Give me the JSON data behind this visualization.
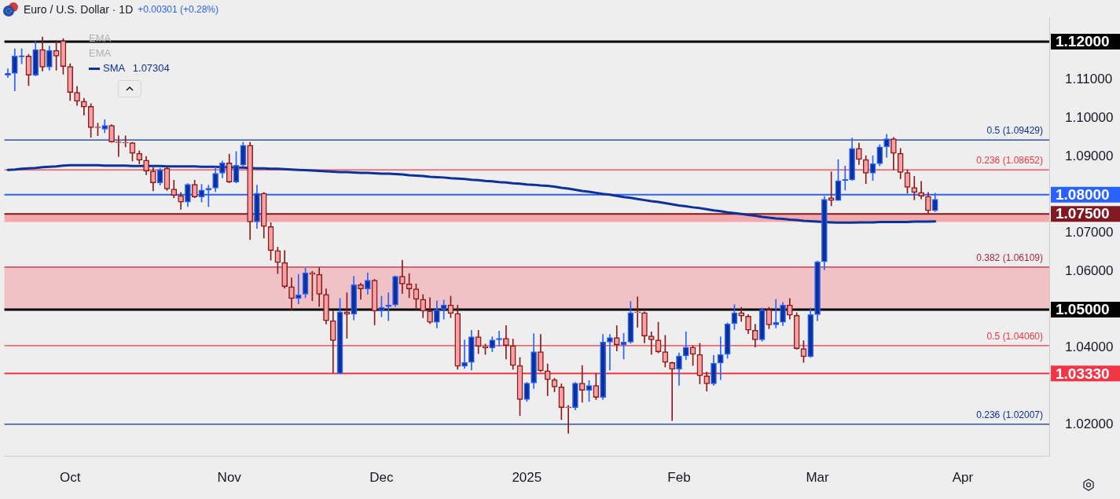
{
  "chart_data": {
    "type": "candlestick",
    "title": "Euro / U.S. Dollar · 1D",
    "subtitle": "+0.00301 (+0.28%)",
    "categories": [
      null,
      null,
      null,
      null,
      null,
      null,
      null,
      null,
      null,
      "Oct",
      null,
      null,
      null,
      null,
      null,
      null,
      null,
      null,
      null,
      null,
      null,
      null,
      null,
      null,
      null,
      null,
      null,
      null,
      null,
      null,
      null,
      null,
      "Nov",
      null,
      null,
      null,
      null,
      null,
      null,
      null,
      null,
      null,
      null,
      null,
      null,
      null,
      null,
      null,
      null,
      null,
      null,
      null,
      null,
      null,
      "Dec",
      null,
      null,
      null,
      null,
      null,
      null,
      null,
      null,
      null,
      null,
      null,
      null,
      null,
      null,
      null,
      null,
      null,
      null,
      null,
      null,
      "2025",
      null,
      null,
      null,
      null,
      null,
      null,
      null,
      null,
      null,
      null,
      null,
      null,
      null,
      null,
      null,
      null,
      null,
      null,
      null,
      null,
      null,
      "Feb",
      null,
      null,
      null,
      null,
      null,
      null,
      null,
      null,
      null,
      null,
      null,
      null,
      null,
      null,
      null,
      null,
      null,
      null,
      null,
      "Mar",
      null,
      null,
      null,
      null,
      null,
      null,
      null,
      null,
      null,
      null,
      null,
      null,
      null,
      null,
      null,
      null,
      null,
      null,
      null,
      null,
      "Apr",
      null,
      null,
      null,
      null,
      null,
      null,
      null,
      null,
      null,
      null,
      null,
      null
    ],
    "ohlc": [
      [
        1.1112,
        1.1129,
        1.1106,
        1.1117
      ],
      [
        1.1117,
        1.1181,
        1.1071,
        1.1162
      ],
      [
        1.116,
        1.1181,
        1.1142,
        1.1163
      ],
      [
        1.1162,
        1.1167,
        1.1085,
        1.1112
      ],
      [
        1.1112,
        1.12,
        1.111,
        1.1179
      ],
      [
        1.1179,
        1.1212,
        1.1123,
        1.1133
      ],
      [
        1.1133,
        1.1188,
        1.1125,
        1.1177
      ],
      [
        1.1177,
        1.1202,
        1.1125,
        1.1162
      ],
      [
        1.1202,
        1.1208,
        1.1115,
        1.1135
      ],
      [
        1.1135,
        1.1142,
        1.1046,
        1.1067
      ],
      [
        1.1067,
        1.1083,
        1.1033,
        1.1044
      ],
      [
        1.1044,
        1.1052,
        1.1008,
        1.1029
      ],
      [
        1.1031,
        1.1038,
        1.095,
        1.0975
      ],
      [
        1.0976,
        1.0987,
        1.0954,
        1.0975
      ],
      [
        1.0971,
        1.0996,
        1.0962,
        1.0981
      ],
      [
        1.0981,
        1.0983,
        1.0937,
        1.0938
      ],
      [
        1.0937,
        1.0954,
        1.09,
        1.0936
      ],
      [
        1.0937,
        1.0954,
        1.0925,
        1.0935
      ],
      [
        1.0936,
        1.0937,
        1.0888,
        1.0908
      ],
      [
        1.0908,
        1.0915,
        1.0881,
        1.089
      ],
      [
        1.089,
        1.09,
        1.0852,
        1.0862
      ],
      [
        1.0862,
        1.0871,
        1.081,
        1.0831
      ],
      [
        1.0831,
        1.0869,
        1.0825,
        1.0865
      ],
      [
        1.0869,
        1.0871,
        1.0811,
        1.0815
      ],
      [
        1.0815,
        1.0838,
        1.0792,
        1.0798
      ],
      [
        1.0798,
        1.0806,
        1.0762,
        1.0781
      ],
      [
        1.0781,
        1.0829,
        1.0769,
        1.0827
      ],
      [
        1.0827,
        1.0838,
        1.0792,
        1.0794
      ],
      [
        1.0794,
        1.0827,
        1.0781,
        1.0812
      ],
      [
        1.0812,
        1.0825,
        1.0769,
        1.0817
      ],
      [
        1.0817,
        1.0873,
        1.0808,
        1.0856
      ],
      [
        1.0856,
        1.0888,
        1.0844,
        1.0883
      ],
      [
        1.0883,
        1.0906,
        1.0831,
        1.0833
      ],
      [
        1.0833,
        1.0913,
        1.0831,
        1.0877
      ],
      [
        1.0877,
        1.0937,
        1.0873,
        1.0929
      ],
      [
        1.0929,
        1.0937,
        1.0683,
        1.0729
      ],
      [
        1.0729,
        1.0825,
        1.0712,
        1.0804
      ],
      [
        1.0804,
        1.0806,
        1.0687,
        1.0717
      ],
      [
        1.0717,
        1.0727,
        1.0629,
        1.0654
      ],
      [
        1.0654,
        1.0663,
        1.0594,
        1.0623
      ],
      [
        1.0623,
        1.0654,
        1.0556,
        1.056
      ],
      [
        1.056,
        1.0583,
        1.0498,
        1.0529
      ],
      [
        1.0529,
        1.0592,
        1.0515,
        1.0539
      ],
      [
        1.054,
        1.0608,
        1.0531,
        1.0596
      ],
      [
        1.0596,
        1.06,
        1.0523,
        1.0592
      ],
      [
        1.0592,
        1.061,
        1.0508,
        1.054
      ],
      [
        1.054,
        1.0554,
        1.0462,
        1.0471
      ],
      [
        1.0471,
        1.0496,
        1.0335,
        1.0419
      ],
      [
        1.0333,
        1.0529,
        1.0332,
        1.0494
      ],
      [
        1.0494,
        1.0544,
        1.0425,
        1.0488
      ],
      [
        1.0488,
        1.0587,
        1.0473,
        1.0565
      ],
      [
        1.0565,
        1.0569,
        1.0527,
        1.0554
      ],
      [
        1.0554,
        1.0596,
        1.054,
        1.0577
      ],
      [
        1.0577,
        1.0579,
        1.046,
        1.0496
      ],
      [
        1.0496,
        1.0535,
        1.0481,
        1.0506
      ],
      [
        1.0508,
        1.0544,
        1.0471,
        1.0512
      ],
      [
        1.0512,
        1.0588,
        1.0508,
        1.0587
      ],
      [
        1.0587,
        1.0629,
        1.0542,
        1.0567
      ],
      [
        1.0567,
        1.0594,
        1.0531,
        1.0554
      ],
      [
        1.0554,
        1.0567,
        1.05,
        1.0527
      ],
      [
        1.0527,
        1.0539,
        1.0479,
        1.0496
      ],
      [
        1.0496,
        1.0531,
        1.0463,
        1.0467
      ],
      [
        1.0467,
        1.0523,
        1.0452,
        1.05
      ],
      [
        1.05,
        1.0525,
        1.0475,
        1.0512
      ],
      [
        1.0512,
        1.0535,
        1.0479,
        1.049
      ],
      [
        1.049,
        1.0512,
        1.0344,
        1.0352
      ],
      [
        1.0352,
        1.0421,
        1.0346,
        1.0362
      ],
      [
        1.0362,
        1.0446,
        1.0342,
        1.0429
      ],
      [
        1.0429,
        1.0446,
        1.0385,
        1.0404
      ],
      [
        1.0404,
        1.041,
        1.0383,
        1.04
      ],
      [
        1.04,
        1.0429,
        1.039,
        1.0421
      ],
      [
        1.0421,
        1.0444,
        1.0404,
        1.0425
      ],
      [
        1.0425,
        1.0458,
        1.0371,
        1.0406
      ],
      [
        1.0406,
        1.0423,
        1.0344,
        1.0354
      ],
      [
        1.0354,
        1.0375,
        1.0223,
        1.0265
      ],
      [
        1.0265,
        1.031,
        1.026,
        1.0308
      ],
      [
        1.0308,
        1.0437,
        1.0294,
        1.039
      ],
      [
        1.039,
        1.0435,
        1.0338,
        1.034
      ],
      [
        1.034,
        1.0358,
        1.0275,
        1.0317
      ],
      [
        1.0317,
        1.0321,
        1.0285,
        1.0298
      ],
      [
        1.0298,
        1.0306,
        1.0213,
        1.0244
      ],
      [
        1.0245,
        1.025,
        1.0177,
        1.0244
      ],
      [
        1.0244,
        1.031,
        1.0238,
        1.0308
      ],
      [
        1.0308,
        1.0354,
        1.0258,
        1.0289
      ],
      [
        1.0289,
        1.0315,
        1.026,
        1.0302
      ],
      [
        1.0302,
        1.0333,
        1.0265,
        1.0271
      ],
      [
        1.0271,
        1.0435,
        1.0265,
        1.0415
      ],
      [
        1.0415,
        1.0435,
        1.0342,
        1.0427
      ],
      [
        1.0427,
        1.0458,
        1.0392,
        1.0408
      ],
      [
        1.0408,
        1.0438,
        1.0371,
        1.0415
      ],
      [
        1.0415,
        1.0521,
        1.0412,
        1.0492
      ],
      [
        1.0493,
        1.0533,
        1.0454,
        1.0492
      ],
      [
        1.0492,
        1.0494,
        1.0413,
        1.0431
      ],
      [
        1.0431,
        1.0442,
        1.0383,
        1.0421
      ],
      [
        1.0421,
        1.0467,
        1.0387,
        1.039
      ],
      [
        1.039,
        1.0433,
        1.035,
        1.0362
      ],
      [
        1.0362,
        1.0363,
        1.021,
        1.0344
      ],
      [
        1.0344,
        1.0387,
        1.0302,
        1.0379
      ],
      [
        1.0379,
        1.0442,
        1.0369,
        1.0402
      ],
      [
        1.0402,
        1.0406,
        1.0354,
        1.0383
      ],
      [
        1.0383,
        1.0412,
        1.0306,
        1.0327
      ],
      [
        1.0327,
        1.0337,
        1.0287,
        1.0306
      ],
      [
        1.0306,
        1.0381,
        1.0302,
        1.036
      ],
      [
        1.036,
        1.0429,
        1.0317,
        1.0383
      ],
      [
        1.0383,
        1.0465,
        1.0373,
        1.0463
      ],
      [
        1.0463,
        1.0513,
        1.0448,
        1.0492
      ],
      [
        1.0492,
        1.0506,
        1.0469,
        1.0483
      ],
      [
        1.0483,
        1.0487,
        1.0437,
        1.0446
      ],
      [
        1.0446,
        1.0462,
        1.0402,
        1.0421
      ],
      [
        1.0421,
        1.0504,
        1.0417,
        1.05
      ],
      [
        1.05,
        1.0506,
        1.045,
        1.046
      ],
      [
        1.046,
        1.0527,
        1.0452,
        1.0467
      ],
      [
        1.0467,
        1.0519,
        1.0458,
        1.0512
      ],
      [
        1.0512,
        1.0529,
        1.0475,
        1.0485
      ],
      [
        1.0485,
        1.0492,
        1.0396,
        1.0398
      ],
      [
        1.0398,
        1.0419,
        1.0362,
        1.0377
      ],
      [
        1.0377,
        1.0504,
        1.0375,
        1.0487
      ],
      [
        1.0487,
        1.0627,
        1.0471,
        1.0625
      ],
      [
        1.0625,
        1.0796,
        1.0604,
        1.0788
      ],
      [
        1.0792,
        1.086,
        1.0771,
        1.0785
      ],
      [
        1.0785,
        1.0892,
        1.0785,
        1.0837
      ],
      [
        1.0837,
        1.0875,
        1.0812,
        1.084
      ],
      [
        1.0839,
        1.0948,
        1.0837,
        1.0921
      ],
      [
        1.0921,
        1.0935,
        1.0879,
        1.0892
      ],
      [
        1.0892,
        1.0902,
        1.0829,
        1.0856
      ],
      [
        1.0856,
        1.0902,
        1.0837,
        1.0881
      ],
      [
        1.0881,
        1.0931,
        1.0875,
        1.0925
      ],
      [
        1.0925,
        1.0958,
        1.0898,
        1.0946
      ],
      [
        1.0946,
        1.095,
        1.0865,
        1.0908
      ],
      [
        1.0908,
        1.0921,
        1.0842,
        1.0858
      ],
      [
        1.0858,
        1.0865,
        1.0804,
        1.0819
      ],
      [
        1.0819,
        1.0848,
        1.0787,
        1.0806
      ],
      [
        1.0806,
        1.0835,
        1.0789,
        1.0796
      ],
      [
        1.0796,
        1.0806,
        1.0752,
        1.0758
      ],
      [
        1.0758,
        1.0804,
        1.0756,
        1.0788
      ],
      null,
      null,
      null,
      null,
      null,
      null,
      null,
      null,
      null,
      null,
      null,
      null,
      null,
      null,
      null,
      null
    ],
    "series": [
      {
        "type": "line",
        "name": "SMA",
        "color": "#0c3299",
        "values": [
          1.0865,
          1.0866,
          1.0868,
          1.0869,
          1.087,
          1.0872,
          1.0873,
          1.0874,
          1.0876,
          1.0877,
          1.0877,
          1.0877,
          1.0877,
          1.0877,
          1.0876,
          1.0876,
          1.0876,
          1.0876,
          1.0875,
          1.0875,
          1.0875,
          1.0875,
          1.0875,
          1.0874,
          1.0874,
          1.0874,
          1.0874,
          1.0874,
          1.0873,
          1.0873,
          1.0873,
          1.0872,
          1.0872,
          1.0871,
          1.0871,
          1.087,
          1.0869,
          1.0869,
          1.0868,
          1.0868,
          1.0867,
          1.0866,
          1.0865,
          1.0864,
          1.0863,
          1.0862,
          1.0861,
          1.086,
          1.0859,
          1.0859,
          1.0858,
          1.0857,
          1.0857,
          1.0856,
          1.0855,
          1.0855,
          1.0854,
          1.0853,
          1.0851,
          1.085,
          1.0849,
          1.0847,
          1.0846,
          1.0845,
          1.0843,
          1.0842,
          1.0841,
          1.0839,
          1.0838,
          1.0836,
          1.0835,
          1.0833,
          1.0832,
          1.083,
          1.0829,
          1.0827,
          1.0826,
          1.0824,
          1.0823,
          1.0821,
          1.0818,
          1.0816,
          1.0813,
          1.081,
          1.0808,
          1.0805,
          1.0802,
          1.08,
          1.0797,
          1.0794,
          1.0792,
          1.0789,
          1.0786,
          1.0783,
          1.0781,
          1.0778,
          1.0775,
          1.0772,
          1.077,
          1.0767,
          1.0765,
          1.0762,
          1.0759,
          1.0757,
          1.0754,
          1.0752,
          1.075,
          1.0747,
          1.0745,
          1.0742,
          1.074,
          1.0738,
          1.0737,
          1.0735,
          1.0734,
          1.0732,
          1.0731,
          1.073,
          1.0729,
          1.0728,
          1.0727,
          1.0727,
          1.0727,
          1.0728,
          1.0728,
          1.0728,
          1.0729,
          1.0729,
          1.0729,
          1.0729,
          1.0729,
          1.073,
          1.073,
          1.073,
          1.07304,
          null,
          null,
          null,
          null,
          null,
          null,
          null,
          null,
          null,
          null,
          null,
          null,
          null,
          null,
          null,
          null
        ]
      }
    ],
    "ylim": [
      1.0117,
      1.1263
    ],
    "yticks": [
      {
        "value": 1.02,
        "label": "1.02000"
      },
      {
        "value": 1.0333,
        "label": "1.03330"
      },
      {
        "value": 1.04,
        "label": "1.04000"
      },
      {
        "value": 1.05,
        "label": "1.05000"
      },
      {
        "value": 1.06,
        "label": "1.06000"
      },
      {
        "value": 1.07,
        "label": "1.07000"
      },
      {
        "value": 1.075,
        "label": "1.07500"
      },
      {
        "value": 1.08,
        "label": "1.08000"
      },
      {
        "value": 1.09,
        "label": "1.09000"
      },
      {
        "value": 1.1,
        "label": "1.10000"
      },
      {
        "value": 1.11,
        "label": "1.11000"
      },
      {
        "value": 1.12,
        "label": "1.12000"
      }
    ],
    "bands": [
      {
        "axis": "y",
        "from": 1.05,
        "to": 1.06109,
        "color": "#f0c2c5"
      },
      {
        "axis": "y",
        "from": 1.0729,
        "to": 1.075,
        "color": "#f4a9ad"
      }
    ],
    "ref_lines": [
      {
        "axis": "y",
        "value": 1.12,
        "color": "#000000"
      },
      {
        "axis": "y",
        "value": 1.08,
        "color": "#2962ff"
      },
      {
        "axis": "y",
        "value": 1.075,
        "color": "#801922"
      },
      {
        "axis": "y",
        "value": 1.05,
        "color": "#000000"
      },
      {
        "axis": "y",
        "value": 1.0333,
        "color": "#f23645"
      },
      {
        "axis": "y",
        "value": 1.09429,
        "label": "0.5 (1.09429)",
        "color": "#0c3299"
      },
      {
        "axis": "y",
        "value": 1.08652,
        "label": "0.236 (1.08652)",
        "color": "#f23645"
      },
      {
        "axis": "y",
        "value": 1.06109,
        "label": "0.382 (1.06109)",
        "color": "#b2283a"
      },
      {
        "axis": "y",
        "value": 1.0406,
        "label": "0.5 (1.04060)",
        "color": "#f23645"
      },
      {
        "axis": "y",
        "value": 1.02007,
        "label": "0.236 (1.02007)",
        "color": "#0c3299"
      }
    ],
    "annotations": [
      "EMA",
      "EMA",
      "1.07304"
    ],
    "legend": "top left",
    "grid": false
  }
}
